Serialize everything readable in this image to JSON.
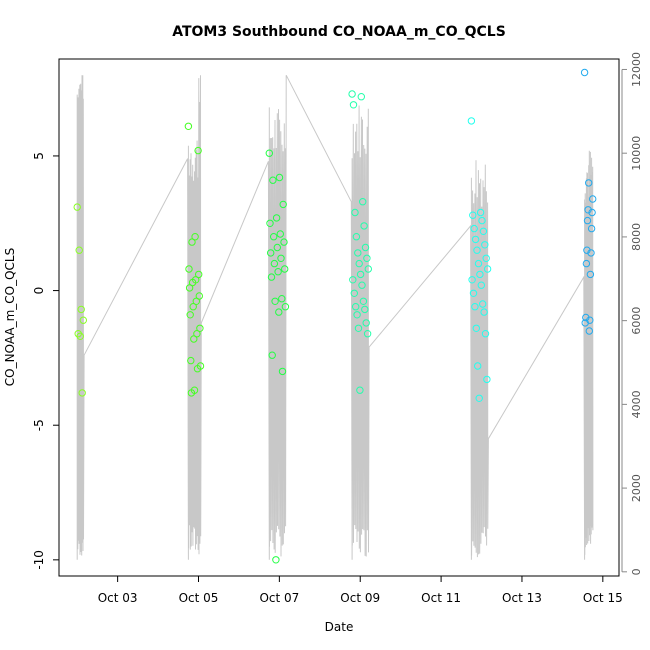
{
  "chart_data": {
    "type": "scatter",
    "title": "ATOM3 Southbound CO_NOAA_m_CO_QCLS",
    "xlabel": "Date",
    "ylabel": "CO_NOAA_m_CO_QCLS",
    "x_ticks": [
      "Oct 03",
      "Oct 05",
      "Oct 07",
      "Oct 09",
      "Oct 11",
      "Oct 13",
      "Oct 15"
    ],
    "x_tick_days": [
      3,
      5,
      7,
      9,
      11,
      13,
      15
    ],
    "xlim": [
      1.55,
      15.4
    ],
    "ylim": [
      -10.6,
      8.6
    ],
    "y_ticks": [
      -10,
      -5,
      0,
      5
    ],
    "y_tick_labels": [
      "-10",
      "-5",
      "0",
      "5"
    ],
    "y2lim": [
      -100,
      12250
    ],
    "y2_ticks": [
      0,
      2000,
      4000,
      6000,
      8000,
      10000,
      12000
    ],
    "y2_tick_labels": [
      "0",
      "2000",
      "4000",
      "6000",
      "8000",
      "10000",
      "12000"
    ],
    "grid": false,
    "legend": "none",
    "colors": {
      "altitude_line": "#c8c8c8",
      "axis": "#000000",
      "right_axis": "#888888"
    },
    "flights": [
      {
        "day_start": 2.0,
        "day_end": 2.15,
        "color": "#88ff22",
        "y": [
          3.1,
          1.5,
          -0.7,
          -1.1,
          -1.6,
          -1.7,
          -3.8
        ]
      },
      {
        "day_start": 4.75,
        "day_end": 5.05,
        "color": "#44ff22",
        "y": [
          6.1,
          5.2,
          2.0,
          1.8,
          0.8,
          0.6,
          0.4,
          0.3,
          0.1,
          -0.2,
          -0.4,
          -0.6,
          -0.9,
          -1.4,
          -1.6,
          -1.8,
          -2.6,
          -2.8,
          -2.9,
          -3.7,
          -3.8
        ]
      },
      {
        "day_start": 6.75,
        "day_end": 7.15,
        "color": "#22ff44",
        "y": [
          5.1,
          4.2,
          4.1,
          3.2,
          2.7,
          2.5,
          2.1,
          2.0,
          1.8,
          1.6,
          1.4,
          1.2,
          1.0,
          0.8,
          0.7,
          0.5,
          -0.3,
          -0.4,
          -0.6,
          -0.8,
          -2.4,
          -3.0,
          -10.0
        ]
      },
      {
        "day_start": 8.8,
        "day_end": 9.2,
        "color": "#22ffaa",
        "y": [
          7.3,
          7.2,
          6.9,
          3.3,
          2.9,
          2.4,
          2.0,
          1.6,
          1.4,
          1.2,
          1.0,
          0.8,
          0.6,
          0.4,
          0.2,
          -0.1,
          -0.4,
          -0.6,
          -0.7,
          -0.9,
          -1.2,
          -1.4,
          -1.6,
          -3.7
        ]
      },
      {
        "day_start": 11.75,
        "day_end": 12.15,
        "color": "#22ffee",
        "y": [
          6.3,
          2.9,
          2.8,
          2.6,
          2.3,
          2.2,
          1.9,
          1.7,
          1.5,
          1.2,
          1.0,
          0.8,
          0.6,
          0.4,
          0.2,
          -0.1,
          -0.5,
          -0.6,
          -0.8,
          -1.4,
          -1.6,
          -2.8,
          -3.3,
          -4.0
        ]
      },
      {
        "day_start": 14.55,
        "day_end": 14.75,
        "color": "#22aaee",
        "y": [
          8.1,
          4.0,
          3.4,
          3.0,
          2.9,
          2.6,
          2.3,
          1.5,
          1.4,
          1.0,
          0.6,
          -1.0,
          -1.1,
          -1.2,
          -1.5
        ]
      }
    ]
  }
}
